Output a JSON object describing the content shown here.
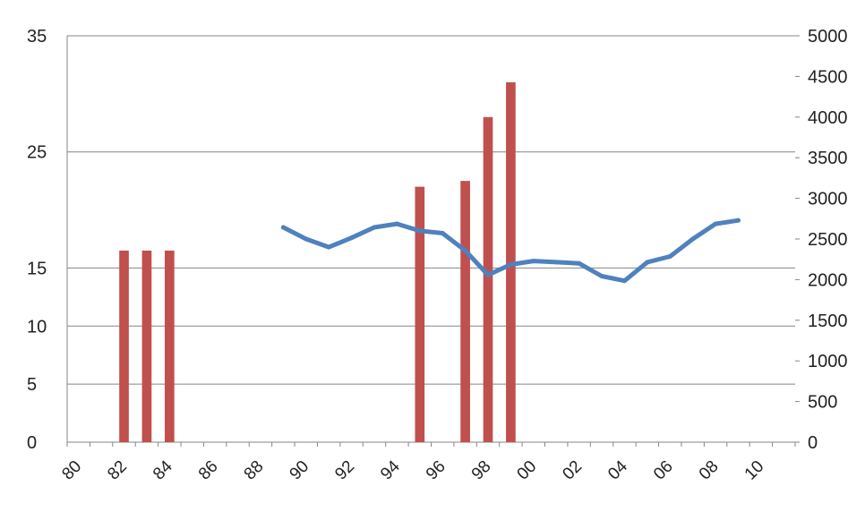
{
  "chart_data": {
    "type": "bar+line",
    "title": "",
    "xlabel": "",
    "ylabel_left": "",
    "ylabel_right": "",
    "grid": true,
    "x_tick_labels": [
      "80",
      "82",
      "84",
      "86",
      "88",
      "90",
      "92",
      "94",
      "96",
      "98",
      "00",
      "02",
      "04",
      "06",
      "08",
      "10"
    ],
    "x_years": [
      1980,
      1981,
      1982,
      1983,
      1984,
      1985,
      1986,
      1987,
      1988,
      1989,
      1990,
      1991,
      1992,
      1993,
      1994,
      1995,
      1996,
      1997,
      1998,
      1999,
      2000,
      2001,
      2002,
      2003,
      2004,
      2005,
      2006,
      2007,
      2008,
      2009,
      2010,
      2011
    ],
    "y_left": {
      "min": 0,
      "max": 35,
      "ticks": [
        "0",
        "5",
        "10",
        "15",
        "25",
        "35"
      ]
    },
    "y_right": {
      "min": 0,
      "max": 5000,
      "ticks": [
        "0",
        "500",
        "1000",
        "1500",
        "2000",
        "2500",
        "3000",
        "3500",
        "4000",
        "4500",
        "5000"
      ]
    },
    "series": [
      {
        "type": "bar",
        "axis": "left",
        "color": "#c0504d",
        "values": [
          null,
          null,
          16.5,
          16.5,
          16.5,
          null,
          null,
          null,
          null,
          null,
          null,
          null,
          null,
          null,
          null,
          22,
          null,
          22.5,
          28,
          31,
          null,
          null,
          null,
          null,
          null,
          null,
          null,
          null,
          null,
          null,
          null,
          null
        ]
      },
      {
        "type": "line",
        "axis": "left",
        "color": "#4f81bd",
        "values": [
          null,
          null,
          null,
          null,
          null,
          null,
          null,
          null,
          null,
          18.5,
          17.5,
          16.8,
          17.6,
          18.5,
          18.8,
          18.2,
          18.0,
          16.5,
          14.4,
          15.3,
          15.6,
          15.5,
          15.4,
          14.3,
          13.9,
          15.5,
          16.0,
          17.5,
          18.8,
          19.1,
          null,
          null
        ]
      }
    ]
  }
}
